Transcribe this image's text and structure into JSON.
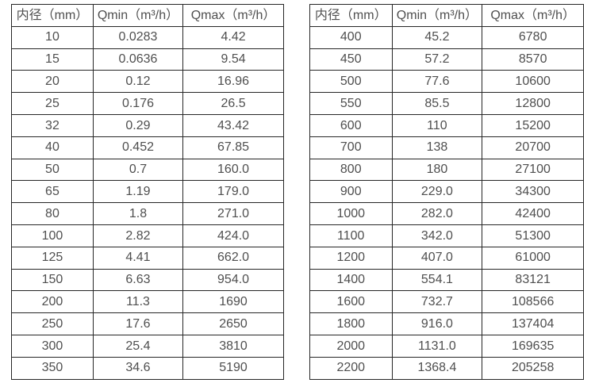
{
  "page": {
    "background": "#ffffff"
  },
  "colors": {
    "text": "#4f4f4f",
    "border": "#262626"
  },
  "tables": [
    {
      "name": "flow-spec-table-small-diameters",
      "headers": [
        "内径（mm）",
        "Qmin（m³/h）",
        "Qmax（m³/h）"
      ],
      "rows": [
        [
          "10",
          "0.0283",
          "4.42"
        ],
        [
          "15",
          "0.0636",
          "9.54"
        ],
        [
          "20",
          "0.12",
          "16.96"
        ],
        [
          "25",
          "0.176",
          "26.5"
        ],
        [
          "32",
          "0.29",
          "43.42"
        ],
        [
          "40",
          "0.452",
          "67.85"
        ],
        [
          "50",
          "0.7",
          "160.0"
        ],
        [
          "65",
          "1.19",
          "179.0"
        ],
        [
          "80",
          "1.8",
          "271.0"
        ],
        [
          "100",
          "2.82",
          "424.0"
        ],
        [
          "125",
          "4.41",
          "662.0"
        ],
        [
          "150",
          "6.63",
          "954.0"
        ],
        [
          "200",
          "11.3",
          "1690"
        ],
        [
          "250",
          "17.6",
          "2650"
        ],
        [
          "300",
          "25.4",
          "3810"
        ],
        [
          "350",
          "34.6",
          "5190"
        ]
      ]
    },
    {
      "name": "flow-spec-table-large-diameters",
      "headers": [
        "内径（mm）",
        "Qmin（m³/h）",
        "Qmax（m³/h）"
      ],
      "rows": [
        [
          "400",
          "45.2",
          "6780"
        ],
        [
          "450",
          "57.2",
          "8570"
        ],
        [
          "500",
          "77.6",
          "10600"
        ],
        [
          "550",
          "85.5",
          "12800"
        ],
        [
          "600",
          "110",
          "15200"
        ],
        [
          "700",
          "138",
          "20700"
        ],
        [
          "800",
          "180",
          "27100"
        ],
        [
          "900",
          "229.0",
          "34300"
        ],
        [
          "1000",
          "282.0",
          "42400"
        ],
        [
          "1100",
          "342.0",
          "51300"
        ],
        [
          "1200",
          "407.0",
          "61000"
        ],
        [
          "1400",
          "554.1",
          "83121"
        ],
        [
          "1600",
          "732.7",
          "108566"
        ],
        [
          "1800",
          "916.0",
          "137404"
        ],
        [
          "2000",
          "1131.0",
          "169635"
        ],
        [
          "2200",
          "1368.4",
          "205258"
        ]
      ]
    }
  ]
}
